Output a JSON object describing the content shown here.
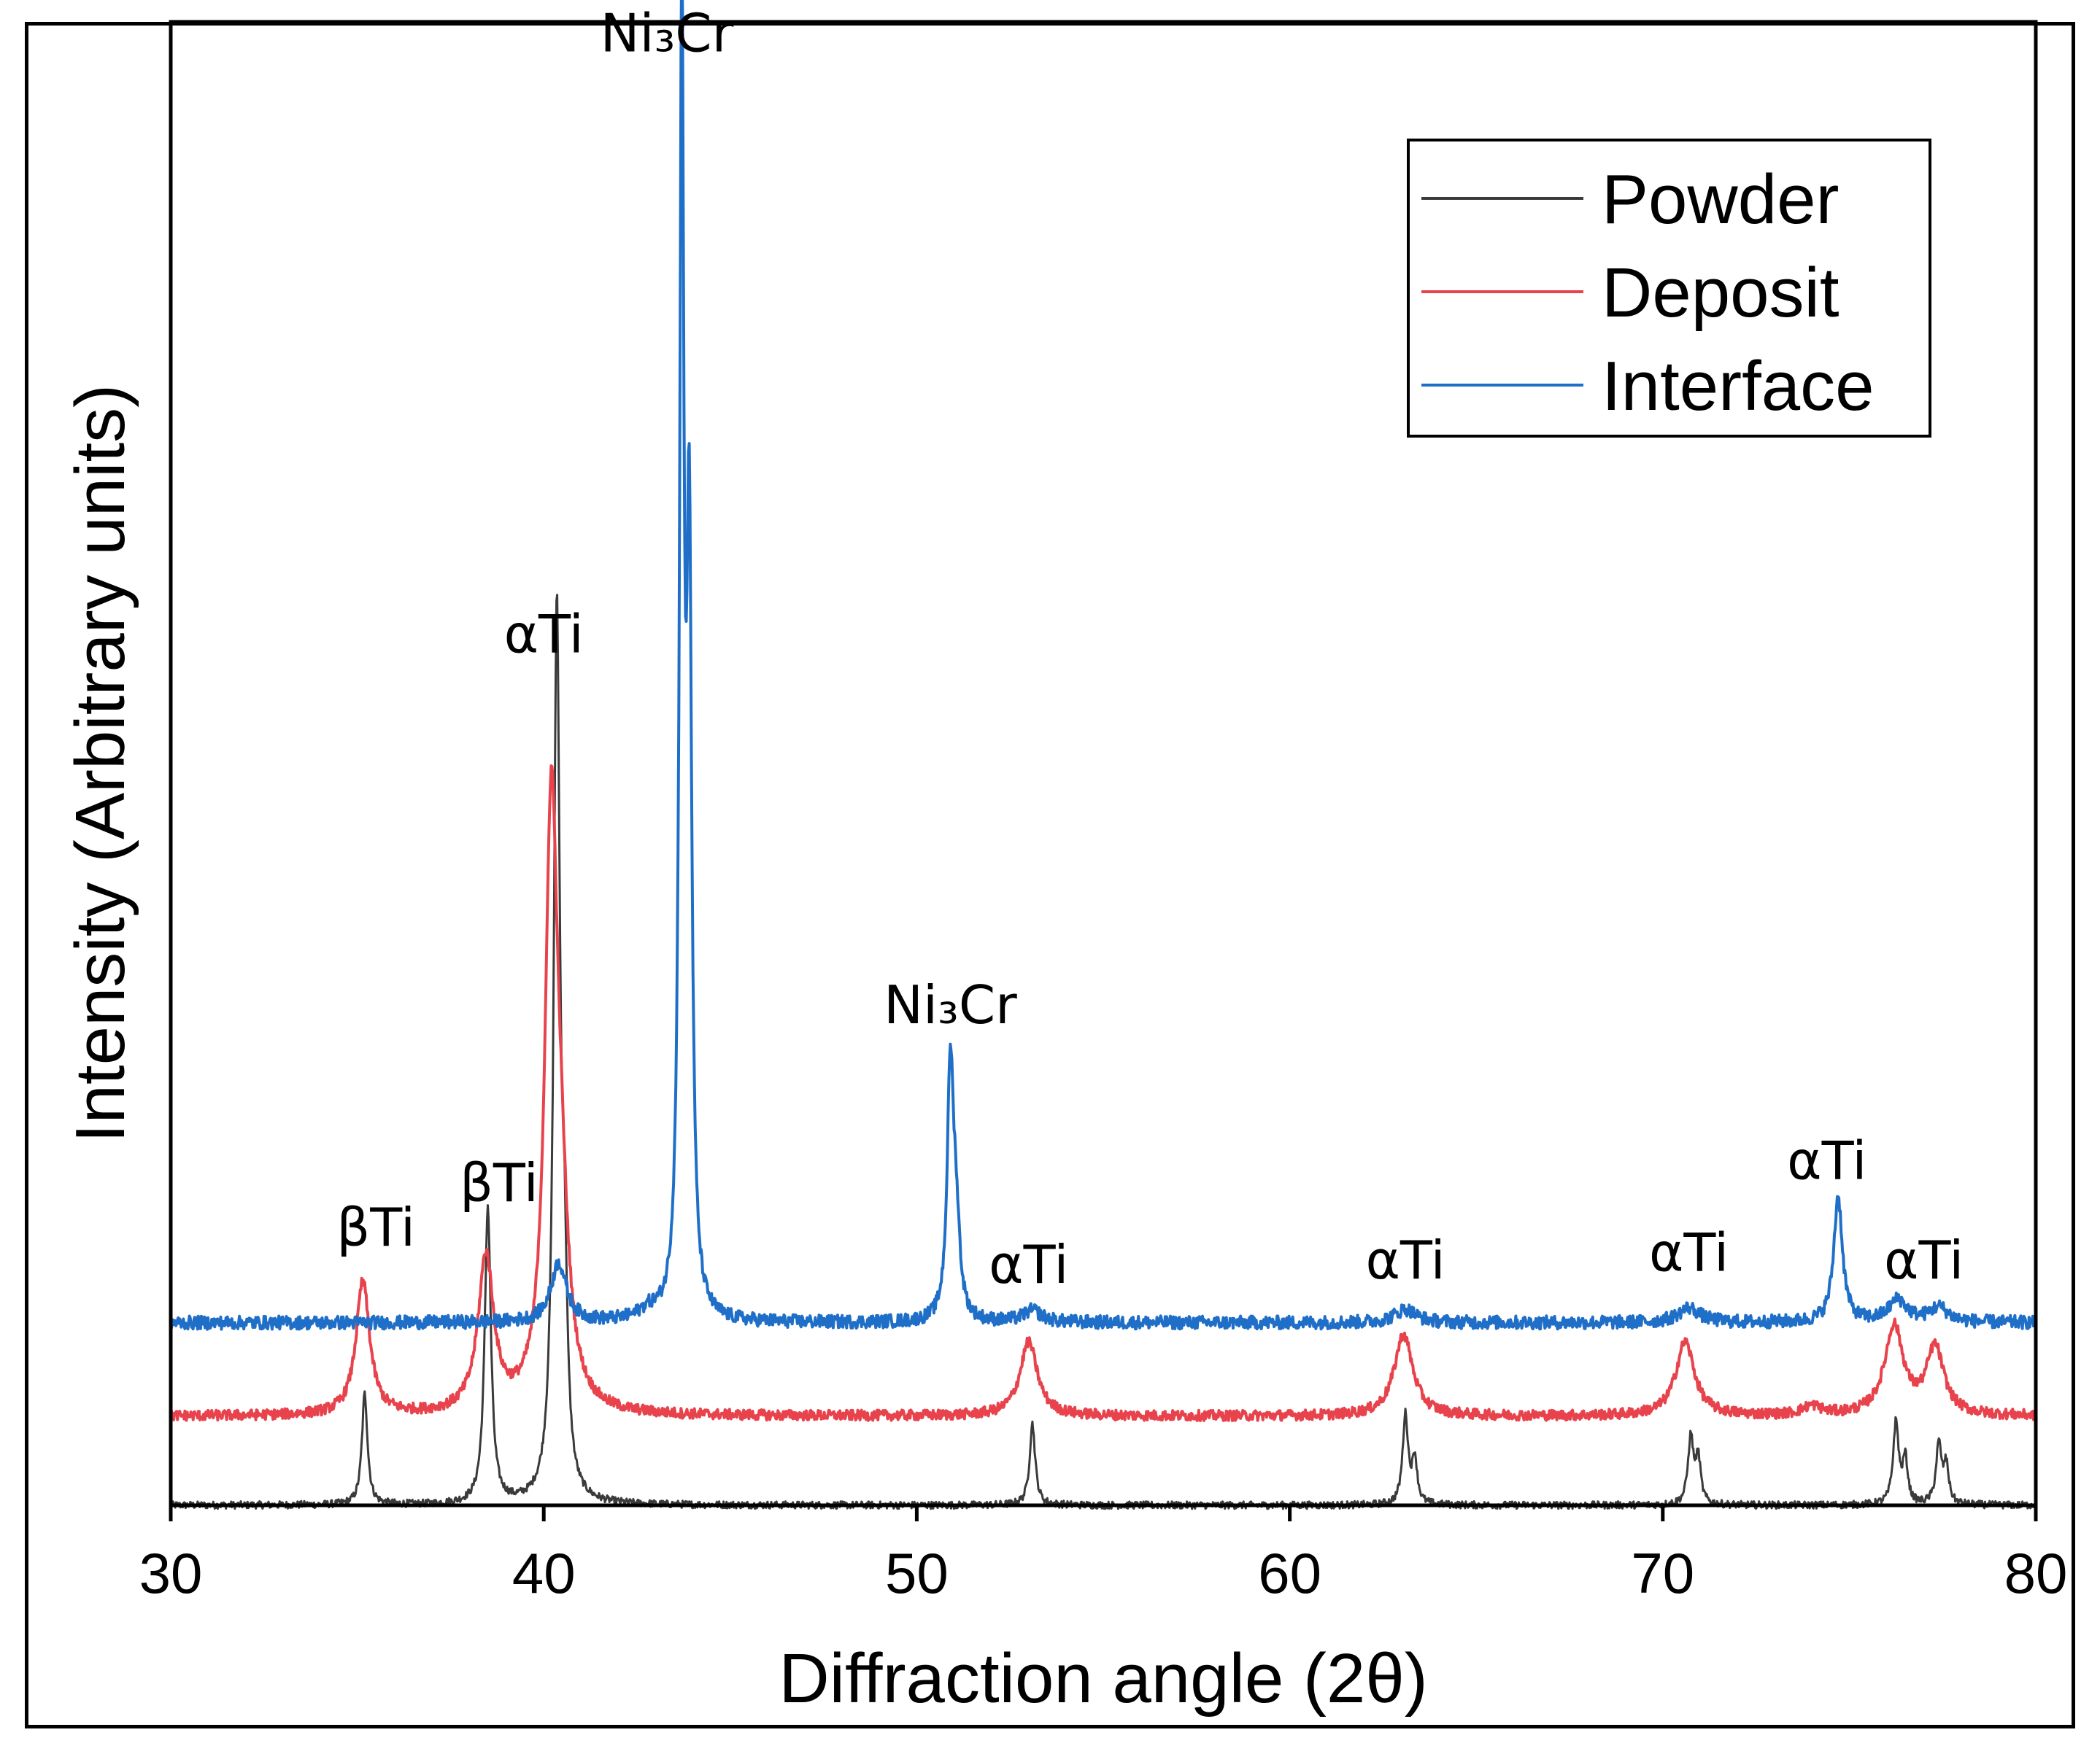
{
  "chart_data": {
    "type": "line",
    "title": "",
    "xlabel": "Diffraction angle (2θ)",
    "ylabel": "Intensity (Arbitrary units)",
    "xlim": [
      30,
      80
    ],
    "ylim": [
      0,
      100
    ],
    "xticks": [
      30,
      40,
      50,
      60,
      70,
      80
    ],
    "yticks_shown": false,
    "legend_position": "top-right",
    "series": [
      {
        "name": "Powder",
        "color": "#3a3a3a",
        "baseline": 0.0,
        "noise": 0.25,
        "peaks": [
          {
            "x": 35.2,
            "height": 7.5,
            "width": 0.09
          },
          {
            "x": 38.5,
            "height": 20.0,
            "width": 0.1
          },
          {
            "x": 40.35,
            "height": 59.5,
            "width": 0.1
          },
          {
            "x": 40.55,
            "height": 12.0,
            "width": 0.09
          },
          {
            "x": 53.1,
            "height": 5.5,
            "width": 0.09
          },
          {
            "x": 63.1,
            "height": 6.0,
            "width": 0.09
          },
          {
            "x": 63.35,
            "height": 3.0,
            "width": 0.08
          },
          {
            "x": 70.75,
            "height": 4.5,
            "width": 0.09
          },
          {
            "x": 70.95,
            "height": 3.0,
            "width": 0.08
          },
          {
            "x": 76.25,
            "height": 5.5,
            "width": 0.09
          },
          {
            "x": 76.5,
            "height": 3.0,
            "width": 0.08
          },
          {
            "x": 77.4,
            "height": 4.0,
            "width": 0.09
          },
          {
            "x": 77.6,
            "height": 2.5,
            "width": 0.08
          }
        ]
      },
      {
        "name": "Deposit",
        "color": "#e8434c",
        "baseline": 6.0,
        "noise": 0.35,
        "peaks": [
          {
            "x": 35.15,
            "height": 9.0,
            "width": 0.22
          },
          {
            "x": 38.45,
            "height": 10.5,
            "width": 0.25
          },
          {
            "x": 40.2,
            "height": 38.5,
            "width": 0.2
          },
          {
            "x": 40.45,
            "height": 10.0,
            "width": 0.25
          },
          {
            "x": 53.0,
            "height": 5.0,
            "width": 0.28
          },
          {
            "x": 63.05,
            "height": 5.5,
            "width": 0.3
          },
          {
            "x": 70.6,
            "height": 5.0,
            "width": 0.3
          },
          {
            "x": 74.0,
            "height": 0.6,
            "width": 0.3
          },
          {
            "x": 76.2,
            "height": 6.0,
            "width": 0.3
          },
          {
            "x": 77.3,
            "height": 4.5,
            "width": 0.28
          }
        ]
      },
      {
        "name": "Interface",
        "color": "#1f6fc8",
        "baseline": 12.3,
        "noise": 0.45,
        "peaks": [
          {
            "x": 40.4,
            "height": 4.0,
            "width": 0.25
          },
          {
            "x": 42.8,
            "height": 0.6,
            "width": 0.3
          },
          {
            "x": 43.7,
            "height": 86.0,
            "width": 0.07
          },
          {
            "x": 43.9,
            "height": 50.0,
            "width": 0.08
          },
          {
            "x": 50.9,
            "height": 16.5,
            "width": 0.1
          },
          {
            "x": 51.05,
            "height": 6.0,
            "width": 0.12
          },
          {
            "x": 53.1,
            "height": 0.8,
            "width": 0.3
          },
          {
            "x": 63.1,
            "height": 0.9,
            "width": 0.35
          },
          {
            "x": 70.7,
            "height": 1.0,
            "width": 0.35
          },
          {
            "x": 74.7,
            "height": 8.5,
            "width": 0.14
          },
          {
            "x": 76.3,
            "height": 1.5,
            "width": 0.3
          },
          {
            "x": 77.4,
            "height": 1.0,
            "width": 0.3
          }
        ]
      }
    ],
    "annotations": [
      {
        "text": "βTi",
        "x": 35.5,
        "y": 17.5
      },
      {
        "text": "βTi",
        "x": 38.8,
        "y": 20.5
      },
      {
        "text": "αTi",
        "x": 40.0,
        "y": 57.5
      },
      {
        "text": "Ni₃Cr",
        "x": 43.3,
        "y": 98.0
      },
      {
        "text": "Ni₃Cr",
        "x": 50.9,
        "y": 32.5
      },
      {
        "text": "αTi",
        "x": 53.0,
        "y": 15.0
      },
      {
        "text": "αTi",
        "x": 63.1,
        "y": 15.3
      },
      {
        "text": "αTi",
        "x": 70.7,
        "y": 15.8
      },
      {
        "text": "αTi",
        "x": 74.4,
        "y": 22.0
      },
      {
        "text": "αTi",
        "x": 77.0,
        "y": 15.3
      }
    ]
  }
}
